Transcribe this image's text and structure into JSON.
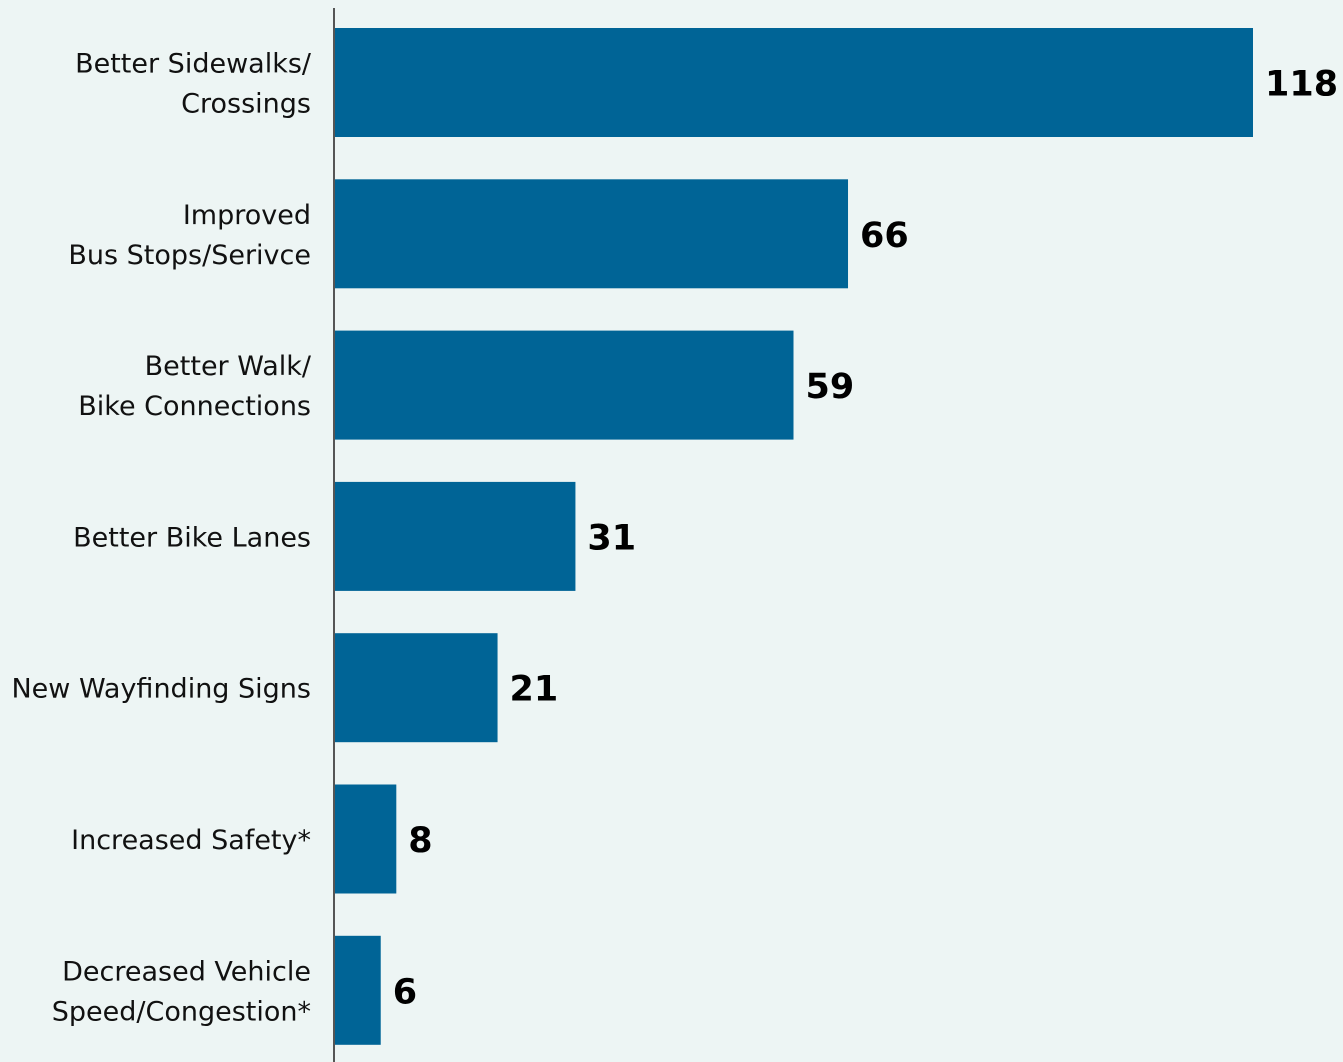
{
  "chart_data": {
    "type": "hbar",
    "categories": [
      [
        "Better Sidewalks/",
        "Crossings"
      ],
      [
        "Improved",
        "Bus Stops/Serivce"
      ],
      [
        "Better Walk/",
        "Bike Connections"
      ],
      [
        "Better Bike Lanes"
      ],
      [
        "New Wayfinding Signs"
      ],
      [
        "Increased Safety*"
      ],
      [
        "Decreased Vehicle",
        "Speed/Congestion*"
      ]
    ],
    "values": [
      118,
      66,
      59,
      31,
      21,
      8,
      6
    ],
    "color": "#006496"
  }
}
